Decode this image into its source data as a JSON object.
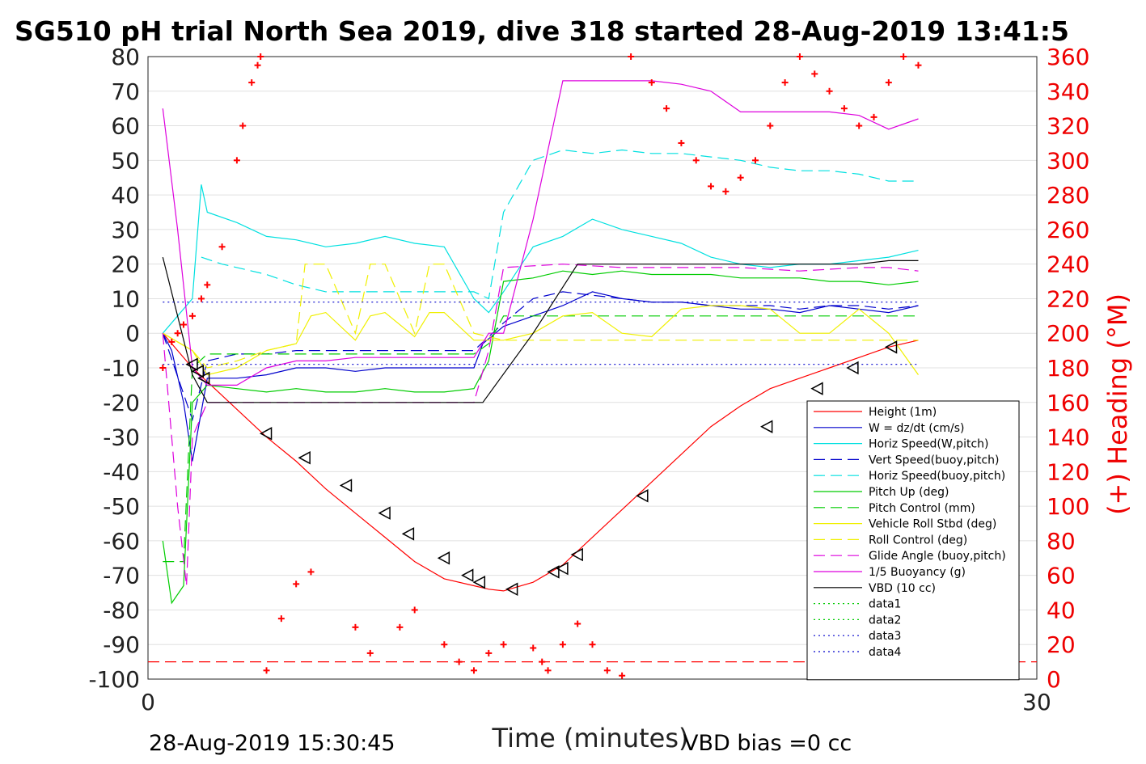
{
  "chart_data": {
    "type": "line",
    "title": "SG510 pH trial North Sea 2019, dive 318 started 28-Aug-2019 13:41:5",
    "xlabel": "Time (minutes)",
    "ylabel_right": "(+) Heading (°M)",
    "xlim": [
      0,
      30
    ],
    "ylim": [
      -100,
      80
    ],
    "ylim_right": [
      0,
      360
    ],
    "x_ticks": [
      "0",
      "30"
    ],
    "y_ticks": [
      "80",
      "70",
      "60",
      "50",
      "40",
      "30",
      "20",
      "10",
      "0",
      "-10",
      "-20",
      "-30",
      "-40",
      "-50",
      "-60",
      "-70",
      "-80",
      "-90",
      "-100"
    ],
    "y_ticks_right": [
      "360",
      "340",
      "320",
      "300",
      "280",
      "260",
      "240",
      "220",
      "200",
      "180",
      "160",
      "140",
      "120",
      "100",
      "80",
      "60",
      "40",
      "20",
      "0"
    ],
    "footer_left": "28-Aug-2019 15:30:45",
    "footer_right": "VBD bias =0 cc",
    "legend_position": "lower-right",
    "grid": true,
    "series": [
      {
        "name": "Height (1m)",
        "color": "#ff0000",
        "dash": "solid",
        "x": [
          0.5,
          1.0,
          1.5,
          2.0,
          3.0,
          4.0,
          5.0,
          6.0,
          7.0,
          8.0,
          9.0,
          10.0,
          11.0,
          11.5,
          12.0,
          13.0,
          14.0,
          15.0,
          16.0,
          17.0,
          18.0,
          19.0,
          20.0,
          21.0,
          22.0,
          23.0,
          24.0,
          25.0,
          26.0
        ],
        "y": [
          0,
          -5,
          -10,
          -14,
          -22,
          -30,
          -37,
          -45,
          -52,
          -59,
          -66,
          -71,
          -73,
          -74,
          -74.5,
          -72,
          -67,
          -59,
          -51,
          -43,
          -35,
          -27,
          -21,
          -16,
          -13,
          -10,
          -7,
          -4,
          -2
        ]
      },
      {
        "name": "W = dz/dt (cm/s)",
        "color": "#0000cc",
        "dash": "solid",
        "x": [
          0.5,
          0.8,
          1.2,
          1.5,
          2.0,
          3.0,
          4.0,
          5.0,
          6.0,
          7.0,
          8.0,
          9.0,
          10.0,
          11.0,
          11.3,
          12.0,
          13.0,
          14.0,
          15.0,
          16.0,
          17.0,
          18.0,
          19.0,
          20.0,
          21.0,
          22.0,
          23.0,
          24.0,
          25.0,
          26.0
        ],
        "y": [
          0,
          -5,
          -20,
          -37,
          -13,
          -13,
          -12,
          -10,
          -10,
          -11,
          -10,
          -10,
          -10,
          -10,
          -3,
          2,
          5,
          8,
          12,
          10,
          9,
          9,
          8,
          7,
          7,
          6,
          8,
          7,
          6,
          8
        ]
      },
      {
        "name": "Horiz Speed(W,pitch)",
        "color": "#00e0e0",
        "dash": "solid",
        "x": [
          0.5,
          1.0,
          1.5,
          1.8,
          2.0,
          3.0,
          4.0,
          5.0,
          6.0,
          7.0,
          8.0,
          9.0,
          10.0,
          11.0,
          11.5,
          12.0,
          13.0,
          14.0,
          15.0,
          16.0,
          17.0,
          18.0,
          19.0,
          20.0,
          21.0,
          22.0,
          23.0,
          24.0,
          25.0,
          26.0
        ],
        "y": [
          0,
          5,
          10,
          43,
          35,
          32,
          28,
          27,
          25,
          26,
          28,
          26,
          25,
          10,
          6,
          12,
          25,
          28,
          33,
          30,
          28,
          26,
          22,
          20,
          19,
          20,
          20,
          21,
          22,
          24
        ]
      },
      {
        "name": "Vert Speed(buoy,pitch)",
        "color": "#0000cc",
        "dash": "dashed",
        "x": [
          0.5,
          1.5,
          2.0,
          3.0,
          4.0,
          5.0,
          6.0,
          7.0,
          8.0,
          9.0,
          10.0,
          11.0,
          12.0,
          13.0,
          14.0,
          15.0,
          16.0,
          17.0,
          18.0,
          19.0,
          20.0,
          21.0,
          22.0,
          23.0,
          24.0,
          25.0,
          26.0
        ],
        "y": [
          0,
          -25,
          -8,
          -6,
          -6,
          -5,
          -5,
          -5,
          -5,
          -5,
          -5,
          -5,
          3,
          10,
          12,
          11,
          10,
          9,
          9,
          8,
          8,
          8,
          7,
          8,
          8,
          7,
          8
        ]
      },
      {
        "name": "Horiz Speed(buoy,pitch)",
        "color": "#00e0e0",
        "dash": "dashed",
        "x": [
          1.8,
          2.5,
          3.0,
          4.0,
          5.0,
          6.0,
          7.0,
          8.0,
          9.0,
          10.0,
          11.0,
          11.5,
          12.0,
          13.0,
          14.0,
          15.0,
          16.0,
          17.0,
          18.0,
          19.0,
          20.0,
          21.0,
          22.0,
          23.0,
          24.0,
          25.0,
          26.0
        ],
        "y": [
          22,
          20,
          19,
          17,
          14,
          12,
          12,
          12,
          12,
          12,
          12,
          10,
          35,
          50,
          53,
          52,
          53,
          52,
          52,
          51,
          50,
          48,
          47,
          47,
          46,
          44,
          44
        ]
      },
      {
        "name": "Pitch Up (deg)",
        "color": "#00cc00",
        "dash": "solid",
        "x": [
          0.5,
          0.8,
          1.2,
          1.5,
          2.0,
          3.0,
          4.0,
          5.0,
          6.0,
          7.0,
          8.0,
          9.0,
          10.0,
          11.0,
          11.5,
          12.0,
          13.0,
          14.0,
          15.0,
          16.0,
          17.0,
          18.0,
          19.0,
          20.0,
          21.0,
          22.0,
          23.0,
          24.0,
          25.0,
          26.0
        ],
        "y": [
          -60,
          -78,
          -73,
          -20,
          -15,
          -16,
          -17,
          -16,
          -17,
          -17,
          -16,
          -17,
          -17,
          -16,
          -8,
          15,
          16,
          18,
          17,
          18,
          17,
          17,
          17,
          16,
          16,
          16,
          15,
          15,
          14,
          15
        ]
      },
      {
        "name": "Pitch Control (mm)",
        "color": "#00cc00",
        "dash": "dashed",
        "x": [
          0.5,
          1.2,
          1.5,
          2.0,
          3.0,
          4.0,
          5.0,
          6.0,
          7.0,
          8.0,
          9.0,
          10.0,
          11.0,
          11.5,
          12.0,
          14.0,
          16.0,
          18.0,
          20.0,
          22.0,
          24.0,
          26.0
        ],
        "y": [
          -66,
          -66,
          -10,
          -6,
          -6,
          -6,
          -6,
          -6,
          -6,
          -6,
          -6,
          -6,
          -6,
          -3,
          5,
          5,
          5,
          5,
          5,
          5,
          5,
          5
        ]
      },
      {
        "name": "Vehicle Roll Stbd (deg)",
        "color": "#f0f000",
        "dash": "solid",
        "x": [
          0.5,
          1.5,
          2.0,
          3.0,
          4.0,
          5.0,
          5.5,
          6.0,
          7.0,
          7.5,
          8.0,
          9.0,
          9.5,
          10.0,
          11.0,
          12.0,
          13.0,
          14.0,
          15.0,
          16.0,
          17.0,
          18.0,
          19.0,
          20.0,
          21.0,
          22.0,
          23.0,
          24.0,
          25.0,
          26.0
        ],
        "y": [
          0,
          -5,
          -12,
          -10,
          -5,
          -3,
          5,
          6,
          -2,
          5,
          6,
          -1,
          6,
          6,
          -2,
          -2,
          0,
          5,
          6,
          0,
          -1,
          7,
          8,
          8,
          7,
          0,
          0,
          7,
          0,
          -12
        ]
      },
      {
        "name": "Roll Control (deg)",
        "color": "#f0f000",
        "dash": "dashed",
        "x": [
          0.5,
          1.5,
          2.0,
          3.0,
          4.0,
          5.0,
          5.3,
          6.0,
          7.0,
          7.5,
          8.0,
          9.0,
          9.5,
          10.0,
          11.0,
          12.0,
          26.0
        ],
        "y": [
          0,
          -5,
          -10,
          -8,
          -5,
          -3,
          20,
          20,
          0,
          20,
          20,
          0,
          20,
          20,
          0,
          -2,
          -2
        ]
      },
      {
        "name": "Glide Angle (buoy,pitch)",
        "color": "#dd00dd",
        "dash": "dashed",
        "x": [
          0.5,
          1.0,
          1.3,
          1.5,
          2.0,
          3.0,
          4.0,
          5.0,
          6.0,
          7.0,
          8.0,
          9.0,
          10.0,
          11.0,
          11.5,
          12.0,
          14.0,
          16.0,
          18.0,
          20.0,
          22.0,
          24.0,
          25.0,
          26.0
        ],
        "y": [
          0,
          -50,
          -73,
          -30,
          -20,
          -20,
          -20,
          -20,
          -20,
          -20,
          -20,
          -20,
          -20,
          -20,
          -5,
          19,
          20,
          19,
          19,
          19,
          18,
          19,
          19,
          18
        ]
      },
      {
        "name": "1/5 Buoyancy (g)",
        "color": "#dd00dd",
        "dash": "solid",
        "x": [
          0.5,
          1.0,
          1.5,
          2.0,
          3.0,
          4.0,
          5.0,
          6.0,
          7.0,
          8.0,
          9.0,
          10.0,
          11.0,
          11.5,
          12.0,
          13.0,
          14.0,
          15.0,
          16.0,
          17.0,
          18.0,
          19.0,
          20.0,
          21.0,
          22.0,
          23.0,
          24.0,
          25.0,
          26.0
        ],
        "y": [
          65,
          30,
          -10,
          -15,
          -15,
          -10,
          -8,
          -8,
          -7,
          -7,
          -7,
          -7,
          -7,
          0,
          0,
          33,
          73,
          73,
          73,
          73,
          72,
          70,
          64,
          64,
          64,
          64,
          63,
          59,
          62
        ]
      },
      {
        "name": "VBD (10 cc)",
        "color": "#000000",
        "dash": "solid",
        "x": [
          0.5,
          1.5,
          2.0,
          4.0,
          6.0,
          8.0,
          10.0,
          11.3,
          13.0,
          14.5,
          16.0,
          18.0,
          20.0,
          22.0,
          24.0,
          25.0,
          26.0
        ],
        "y": [
          22,
          -12,
          -20,
          -20,
          -20,
          -20,
          -20,
          -20,
          0,
          20,
          20,
          20,
          20,
          20,
          20,
          21,
          21
        ]
      },
      {
        "name": "data1",
        "color": "#00cc00",
        "dash": "dotted",
        "x": [],
        "y": []
      },
      {
        "name": "data2",
        "color": "#00cc00",
        "dash": "dotted",
        "x": [],
        "y": []
      },
      {
        "name": "data3",
        "color": "#0000cc",
        "dash": "dotted",
        "x": [
          0.5,
          26.0
        ],
        "y": [
          9,
          9
        ]
      },
      {
        "name": "data4",
        "color": "#0000cc",
        "dash": "dotted",
        "x": [
          0.5,
          26.0
        ],
        "y": [
          -9,
          -9
        ]
      }
    ],
    "heading_series": {
      "name": "(+) Heading",
      "color": "#ff0000",
      "x": [
        0.5,
        0.8,
        1.0,
        1.2,
        1.5,
        1.8,
        2.0,
        2.5,
        3.0,
        3.2,
        3.5,
        3.7,
        3.8,
        4.0,
        4.5,
        5.0,
        5.5,
        7.0,
        7.5,
        8.5,
        9.0,
        10.0,
        10.5,
        11.0,
        11.5,
        12.0,
        13.0,
        13.3,
        13.5,
        14.0,
        14.5,
        15.0,
        15.5,
        16.0,
        16.3,
        17.0,
        17.5,
        18.0,
        18.5,
        19.0,
        19.5,
        20.0,
        20.5,
        21.0,
        21.5,
        22.0,
        22.5,
        23.0,
        23.5,
        24.0,
        24.5,
        25.0,
        25.5,
        26.0
      ],
      "y": [
        180,
        195,
        200,
        205,
        210,
        220,
        228,
        250,
        300,
        320,
        345,
        355,
        360,
        5,
        35,
        55,
        62,
        30,
        15,
        30,
        40,
        20,
        10,
        5,
        15,
        20,
        18,
        10,
        5,
        20,
        32,
        20,
        5,
        2,
        360,
        345,
        330,
        310,
        300,
        285,
        282,
        290,
        300,
        320,
        345,
        360,
        350,
        340,
        330,
        320,
        325,
        345,
        360,
        355
      ]
    },
    "reference_line": {
      "color": "#ff0000",
      "dash": "dashed",
      "y_right": 10
    },
    "markers": {
      "shape": "triangle-left",
      "x": [
        1.5,
        1.7,
        1.9,
        4.0,
        5.3,
        6.7,
        8.0,
        8.8,
        10.0,
        10.8,
        11.2,
        12.3,
        13.7,
        14.0,
        14.5,
        16.7,
        20.9,
        22.6,
        23.8,
        25.1
      ],
      "y": [
        -9,
        -11,
        -13,
        -29,
        -36,
        -44,
        -52,
        -58,
        -65,
        -70,
        -72,
        -74,
        -69,
        -68,
        -64,
        -47,
        -27,
        -16,
        -10,
        -4
      ]
    }
  }
}
